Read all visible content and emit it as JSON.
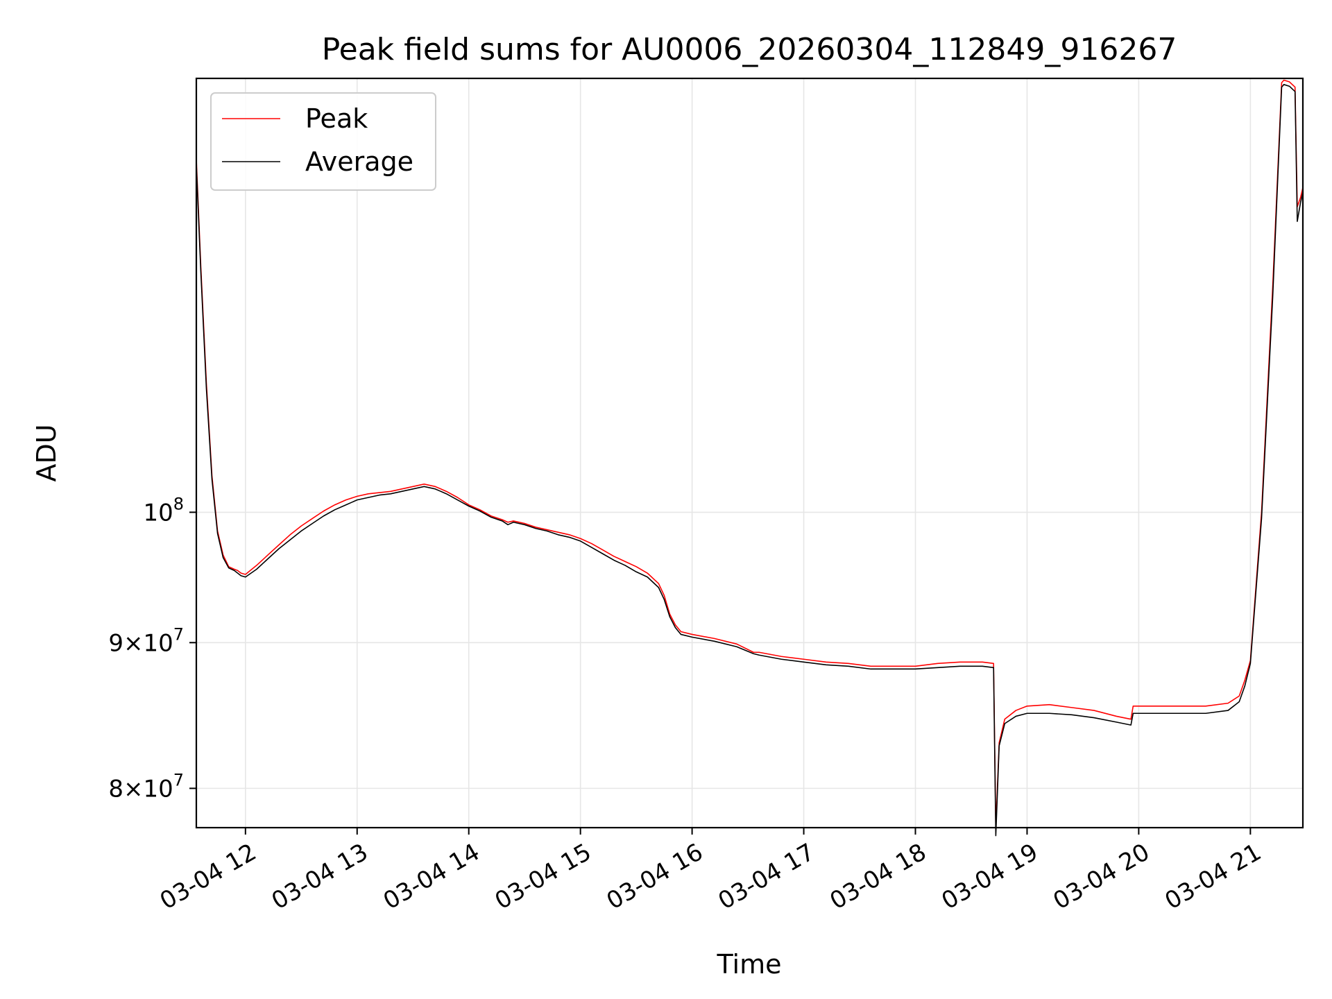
{
  "chart_data": {
    "type": "line",
    "title": "Peak field sums for AU0006_20260304_112849_916267",
    "xlabel": "Time",
    "ylabel": "ADU",
    "x_unit": "hours",
    "xlim": [
      11.56,
      21.47
    ],
    "ylim": [
      77500000,
      142000000
    ],
    "y_scale": "log",
    "grid": true,
    "legend_position": "top-left",
    "x_ticks": [
      {
        "value": 12,
        "label": "03-04 12"
      },
      {
        "value": 13,
        "label": "03-04 13"
      },
      {
        "value": 14,
        "label": "03-04 14"
      },
      {
        "value": 15,
        "label": "03-04 15"
      },
      {
        "value": 16,
        "label": "03-04 16"
      },
      {
        "value": 17,
        "label": "03-04 17"
      },
      {
        "value": 18,
        "label": "03-04 18"
      },
      {
        "value": 19,
        "label": "03-04 19"
      },
      {
        "value": 20,
        "label": "03-04 20"
      },
      {
        "value": 21,
        "label": "03-04 21"
      }
    ],
    "y_ticks": [
      {
        "value": 80000000,
        "base": "8",
        "mid": "×10",
        "exp": "7"
      },
      {
        "value": 90000000,
        "base": "9",
        "mid": "×10",
        "exp": "7"
      },
      {
        "value": 100000000,
        "base": "",
        "mid": "10",
        "exp": "8"
      }
    ],
    "series": [
      {
        "name": "Peak",
        "color": "#ff0000",
        "x": [
          11.56,
          11.6,
          11.65,
          11.7,
          11.75,
          11.8,
          11.85,
          11.9,
          11.93,
          11.96,
          12.0,
          12.1,
          12.2,
          12.3,
          12.4,
          12.5,
          12.6,
          12.7,
          12.8,
          12.9,
          13.0,
          13.1,
          13.2,
          13.3,
          13.4,
          13.5,
          13.6,
          13.7,
          13.8,
          13.9,
          14.0,
          14.1,
          14.2,
          14.3,
          14.35,
          14.4,
          14.5,
          14.6,
          14.7,
          14.8,
          14.9,
          15.0,
          15.1,
          15.2,
          15.3,
          15.4,
          15.5,
          15.6,
          15.7,
          15.75,
          15.8,
          15.85,
          15.9,
          16.0,
          16.2,
          16.4,
          16.55,
          16.6,
          16.8,
          17.0,
          17.2,
          17.4,
          17.6,
          17.8,
          18.0,
          18.2,
          18.4,
          18.6,
          18.7,
          18.72,
          18.75,
          18.8,
          18.9,
          19.0,
          19.2,
          19.4,
          19.6,
          19.8,
          19.93,
          19.95,
          20.0,
          20.2,
          20.4,
          20.6,
          20.8,
          20.9,
          20.95,
          21.0,
          21.1,
          21.2,
          21.28,
          21.3,
          21.35,
          21.4,
          21.42,
          21.45,
          21.47
        ],
        "y": [
          133000000,
          122000000,
          111000000,
          103000000,
          98500000,
          96600000,
          95700000,
          95500000,
          95400000,
          95200000,
          95100000,
          95800000,
          96600000,
          97400000,
          98200000,
          98900000,
          99500000,
          100100000,
          100600000,
          101000000,
          101300000,
          101500000,
          101600000,
          101700000,
          101900000,
          102100000,
          102300000,
          102100000,
          101700000,
          101200000,
          100600000,
          100200000,
          99700000,
          99400000,
          99200000,
          99300000,
          99100000,
          98800000,
          98600000,
          98400000,
          98200000,
          97900000,
          97500000,
          97000000,
          96500000,
          96100000,
          95700000,
          95200000,
          94400000,
          93500000,
          92100000,
          91300000,
          90800000,
          90600000,
          90300000,
          89900000,
          89300000,
          89300000,
          89000000,
          88800000,
          88600000,
          88500000,
          88300000,
          88300000,
          88300000,
          88500000,
          88600000,
          88600000,
          88500000,
          77500000,
          83000000,
          84600000,
          85200000,
          85500000,
          85600000,
          85400000,
          85200000,
          84800000,
          84600000,
          85500000,
          85500000,
          85500000,
          85500000,
          85500000,
          85700000,
          86200000,
          87300000,
          88700000,
          100000000,
          120000000,
          141500000,
          141800000,
          141600000,
          141000000,
          128000000,
          129000000,
          130000000
        ]
      },
      {
        "name": "Average",
        "color": "#000000",
        "x": [
          11.56,
          11.6,
          11.65,
          11.7,
          11.75,
          11.8,
          11.85,
          11.9,
          11.93,
          11.96,
          12.0,
          12.1,
          12.2,
          12.3,
          12.4,
          12.5,
          12.6,
          12.7,
          12.8,
          12.9,
          13.0,
          13.1,
          13.2,
          13.3,
          13.4,
          13.5,
          13.6,
          13.7,
          13.8,
          13.9,
          14.0,
          14.1,
          14.2,
          14.3,
          14.35,
          14.4,
          14.5,
          14.6,
          14.7,
          14.8,
          14.9,
          15.0,
          15.1,
          15.2,
          15.3,
          15.4,
          15.5,
          15.6,
          15.7,
          15.75,
          15.8,
          15.85,
          15.9,
          16.0,
          16.2,
          16.4,
          16.55,
          16.6,
          16.8,
          17.0,
          17.2,
          17.4,
          17.6,
          17.8,
          18.0,
          18.2,
          18.4,
          18.6,
          18.7,
          18.72,
          18.75,
          18.8,
          18.9,
          19.0,
          19.2,
          19.4,
          19.6,
          19.8,
          19.93,
          19.95,
          20.0,
          20.2,
          20.4,
          20.6,
          20.8,
          20.9,
          20.95,
          21.0,
          21.1,
          21.2,
          21.28,
          21.3,
          21.35,
          21.4,
          21.42,
          21.45,
          21.47
        ],
        "y": [
          132500000,
          121500000,
          110500000,
          102700000,
          98300000,
          96400000,
          95600000,
          95400000,
          95200000,
          95000000,
          94900000,
          95500000,
          96300000,
          97100000,
          97800000,
          98500000,
          99100000,
          99700000,
          100200000,
          100600000,
          101000000,
          101200000,
          101400000,
          101500000,
          101700000,
          101900000,
          102100000,
          101900000,
          101500000,
          101000000,
          100500000,
          100100000,
          99600000,
          99300000,
          99000000,
          99200000,
          99000000,
          98700000,
          98500000,
          98200000,
          98000000,
          97700000,
          97200000,
          96700000,
          96200000,
          95800000,
          95300000,
          94900000,
          94100000,
          93200000,
          91900000,
          91100000,
          90600000,
          90400000,
          90100000,
          89700000,
          89200000,
          89100000,
          88800000,
          88600000,
          88400000,
          88300000,
          88100000,
          88100000,
          88100000,
          88200000,
          88300000,
          88300000,
          88200000,
          77000000,
          82800000,
          84300000,
          84800000,
          85000000,
          85000000,
          84900000,
          84700000,
          84400000,
          84200000,
          85000000,
          85000000,
          85000000,
          85000000,
          85000000,
          85200000,
          85800000,
          86900000,
          88500000,
          99500000,
          119000000,
          141000000,
          141300000,
          141100000,
          140500000,
          126500000,
          128500000,
          129500000
        ]
      }
    ]
  }
}
